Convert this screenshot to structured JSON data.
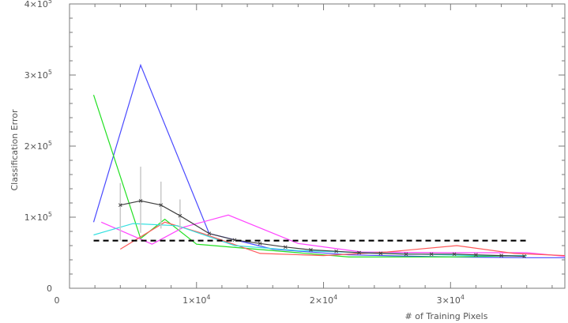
{
  "chart_data": {
    "type": "line",
    "title": "",
    "xlabel": "# of Training Pixels",
    "ylabel": "Classification Error",
    "xlim": [
      0,
      39000
    ],
    "ylim": [
      0,
      400000
    ],
    "x_ticks": [
      {
        "value": 0,
        "mantissa": "0",
        "exponent": ""
      },
      {
        "value": 10000,
        "mantissa": "1×10",
        "exponent": "4"
      },
      {
        "value": 20000,
        "mantissa": "2×10",
        "exponent": "4"
      },
      {
        "value": 30000,
        "mantissa": "3×10",
        "exponent": "4"
      }
    ],
    "y_ticks": [
      {
        "value": 0,
        "mantissa": "0",
        "exponent": ""
      },
      {
        "value": 100000,
        "mantissa": "1×10",
        "exponent": "5"
      },
      {
        "value": 200000,
        "mantissa": "2×10",
        "exponent": "5"
      },
      {
        "value": 300000,
        "mantissa": "3×10",
        "exponent": "5"
      },
      {
        "value": 400000,
        "mantissa": "4×10",
        "exponent": "5"
      }
    ],
    "grid": false,
    "legend": "none",
    "reference_line": {
      "y": 67000,
      "color": "#000000",
      "style": "dashed"
    },
    "series": [
      {
        "color": "#4a4aff",
        "x": [
          1900,
          5600,
          11000,
          16000,
          22000,
          30000,
          36000,
          39000
        ],
        "y": [
          93000,
          314000,
          77000,
          55000,
          47000,
          44000,
          43000,
          43000
        ]
      },
      {
        "color": "#22e022",
        "x": [
          1900,
          5600,
          7500,
          10000,
          14000,
          18000,
          22000,
          30000,
          36000
        ],
        "y": [
          272000,
          70000,
          97000,
          62000,
          56000,
          50000,
          44000,
          44000,
          46000
        ]
      },
      {
        "color": "#ff44ff",
        "x": [
          2500,
          6500,
          9000,
          12500,
          18000,
          23000,
          30000,
          36000,
          39000
        ],
        "y": [
          93000,
          62000,
          86000,
          103000,
          63000,
          51000,
          50000,
          50000,
          45000
        ]
      },
      {
        "color": "#ff5a5a",
        "x": [
          4000,
          7500,
          10500,
          15000,
          20000,
          25000,
          30500,
          35000,
          39000
        ],
        "y": [
          55000,
          93000,
          77000,
          49000,
          46000,
          51000,
          60000,
          49000,
          46000
        ]
      },
      {
        "color": "#33e0e0",
        "x": [
          1900,
          5000,
          8500,
          13000,
          18000,
          25000,
          32000,
          36000
        ],
        "y": [
          75000,
          91000,
          88000,
          60000,
          53000,
          49000,
          46000,
          46000
        ]
      },
      {
        "color": "#404040",
        "x": [
          4000,
          5600,
          7200,
          8700,
          11000,
          13000,
          15000,
          17000,
          19000,
          21000,
          22800,
          24500,
          26500,
          28500,
          30300,
          32000,
          34000,
          35800
        ],
        "y": [
          117000,
          123000,
          117000,
          102000,
          77000,
          68000,
          63000,
          58000,
          54000,
          52000,
          50000,
          49000,
          48000,
          48000,
          48000,
          47000,
          46000,
          45000
        ],
        "markers": true,
        "error_bars": [
          {
            "x": 4000,
            "low": 67000,
            "high": 148000
          },
          {
            "x": 5600,
            "low": 78000,
            "high": 171000
          },
          {
            "x": 7200,
            "low": 84000,
            "high": 150000
          },
          {
            "x": 8700,
            "low": 82000,
            "high": 125000
          }
        ]
      }
    ]
  }
}
